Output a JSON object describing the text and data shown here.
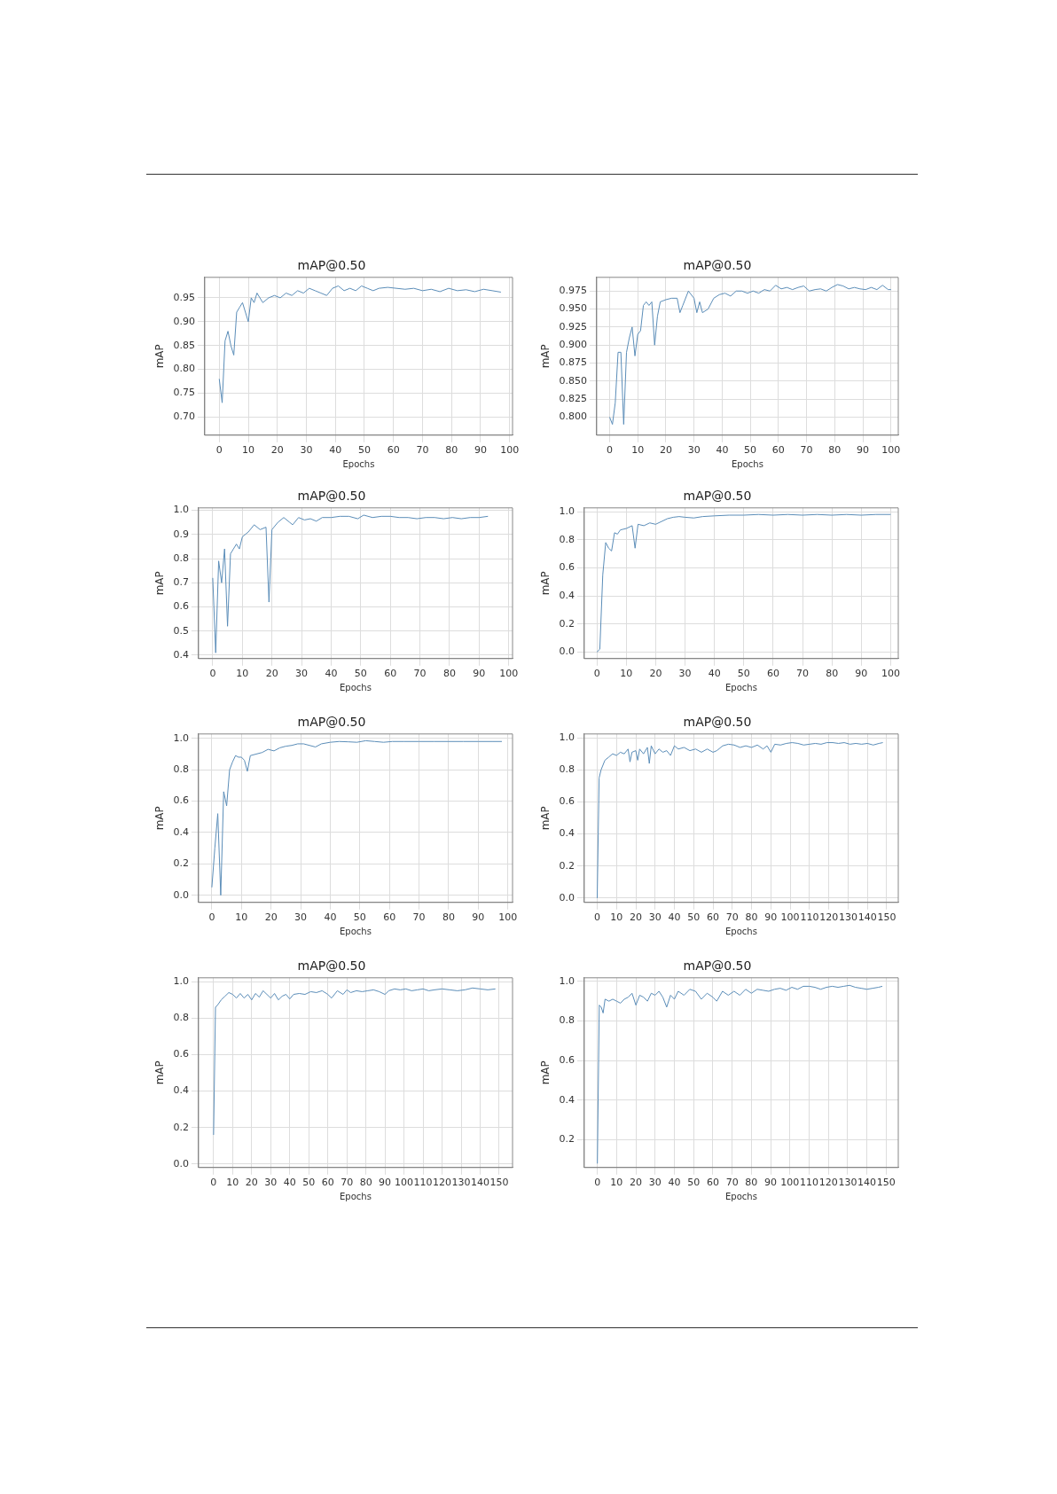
{
  "chart_data": [
    {
      "type": "line",
      "title": "mAP@0.50",
      "xlabel": "Epochs",
      "ylabel": "mAP",
      "grid": true,
      "xlim": [
        -5,
        101
      ],
      "ylim": [
        0.662,
        0.993
      ],
      "xticks": [
        0,
        10,
        20,
        30,
        40,
        50,
        60,
        70,
        80,
        90,
        100
      ],
      "yticks": [
        {
          "value": 0.7,
          "label": "0.70"
        },
        {
          "value": 0.75,
          "label": "0.75"
        },
        {
          "value": 0.8,
          "label": "0.80"
        },
        {
          "value": 0.85,
          "label": "0.85"
        },
        {
          "value": 0.9,
          "label": "0.90"
        },
        {
          "value": 0.95,
          "label": "0.95"
        }
      ],
      "x": [
        0,
        1,
        2,
        3,
        4,
        5,
        6,
        7,
        8,
        9,
        10,
        11,
        12,
        13,
        14,
        15,
        17,
        19,
        21,
        23,
        25,
        27,
        29,
        31,
        33,
        35,
        37,
        39,
        41,
        43,
        45,
        47,
        49,
        51,
        53,
        55,
        58,
        61,
        64,
        67,
        70,
        73,
        76,
        79,
        82,
        85,
        88,
        91,
        94,
        97
      ],
      "series": [
        {
          "color": "#5b8db8",
          "values": [
            0.78,
            0.73,
            0.86,
            0.88,
            0.85,
            0.83,
            0.92,
            0.93,
            0.94,
            0.92,
            0.9,
            0.95,
            0.94,
            0.96,
            0.95,
            0.94,
            0.95,
            0.955,
            0.95,
            0.96,
            0.955,
            0.965,
            0.96,
            0.97,
            0.965,
            0.96,
            0.955,
            0.97,
            0.975,
            0.965,
            0.97,
            0.965,
            0.975,
            0.97,
            0.965,
            0.97,
            0.972,
            0.97,
            0.968,
            0.97,
            0.965,
            0.968,
            0.963,
            0.97,
            0.965,
            0.967,
            0.963,
            0.968,
            0.965,
            0.962
          ]
        }
      ]
    },
    {
      "type": "line",
      "title": "mAP@0.50",
      "xlabel": "Epochs",
      "ylabel": "mAP",
      "grid": true,
      "xlim": [
        -4.6,
        102.6
      ],
      "ylim": [
        0.775,
        0.994
      ],
      "xticks": [
        0,
        10,
        20,
        30,
        40,
        50,
        60,
        70,
        80,
        90,
        100
      ],
      "yticks": [
        {
          "value": 0.8,
          "label": "0.800"
        },
        {
          "value": 0.825,
          "label": "0.825"
        },
        {
          "value": 0.85,
          "label": "0.850"
        },
        {
          "value": 0.875,
          "label": "0.875"
        },
        {
          "value": 0.9,
          "label": "0.900"
        },
        {
          "value": 0.925,
          "label": "0.925"
        },
        {
          "value": 0.95,
          "label": "0.950"
        },
        {
          "value": 0.975,
          "label": "0.975"
        }
      ],
      "x": [
        0,
        1,
        2,
        3,
        4,
        5,
        6,
        7,
        8,
        9,
        10,
        11,
        12,
        13,
        14,
        15,
        16,
        17,
        18,
        20,
        22,
        24,
        25,
        26,
        28,
        30,
        31,
        32,
        33,
        35,
        37,
        39,
        41,
        43,
        45,
        47,
        49,
        51,
        53,
        55,
        57,
        59,
        61,
        63,
        65,
        67,
        69,
        71,
        73,
        75,
        77,
        79,
        81,
        83,
        85,
        87,
        89,
        91,
        93,
        95,
        97,
        99,
        100
      ],
      "series": [
        {
          "color": "#5b8db8",
          "values": [
            0.8,
            0.79,
            0.82,
            0.89,
            0.89,
            0.79,
            0.89,
            0.91,
            0.925,
            0.885,
            0.915,
            0.92,
            0.955,
            0.96,
            0.955,
            0.96,
            0.9,
            0.94,
            0.96,
            0.963,
            0.965,
            0.965,
            0.945,
            0.955,
            0.975,
            0.965,
            0.945,
            0.96,
            0.945,
            0.95,
            0.965,
            0.97,
            0.972,
            0.968,
            0.975,
            0.975,
            0.972,
            0.975,
            0.972,
            0.977,
            0.975,
            0.983,
            0.978,
            0.98,
            0.977,
            0.98,
            0.982,
            0.975,
            0.977,
            0.978,
            0.975,
            0.98,
            0.984,
            0.982,
            0.978,
            0.98,
            0.978,
            0.977,
            0.98,
            0.977,
            0.983,
            0.977,
            0.977
          ]
        }
      ]
    },
    {
      "type": "line",
      "title": "mAP@0.50",
      "xlabel": "Epochs",
      "ylabel": "mAP",
      "grid": true,
      "xlim": [
        -4.8,
        101.3
      ],
      "ylim": [
        0.386,
        1.01
      ],
      "xticks": [
        0,
        10,
        20,
        30,
        40,
        50,
        60,
        70,
        80,
        90,
        100
      ],
      "yticks": [
        {
          "value": 0.4,
          "label": "0.4"
        },
        {
          "value": 0.5,
          "label": "0.5"
        },
        {
          "value": 0.6,
          "label": "0.6"
        },
        {
          "value": 0.7,
          "label": "0.7"
        },
        {
          "value": 0.8,
          "label": "0.8"
        },
        {
          "value": 0.9,
          "label": "0.9"
        },
        {
          "value": 1,
          "label": "1.0"
        }
      ],
      "x": [
        0,
        1,
        2,
        3,
        4,
        5,
        6,
        7,
        8,
        9,
        10,
        12,
        14,
        16,
        18,
        19,
        20,
        22,
        24,
        26,
        27,
        29,
        31,
        33,
        35,
        37,
        40,
        43,
        46,
        49,
        51,
        54,
        57,
        60,
        63,
        66,
        69,
        72,
        75,
        78,
        81,
        84,
        87,
        90,
        93
      ],
      "series": [
        {
          "color": "#5b8db8",
          "values": [
            0.72,
            0.41,
            0.79,
            0.7,
            0.84,
            0.52,
            0.82,
            0.84,
            0.86,
            0.84,
            0.89,
            0.91,
            0.94,
            0.92,
            0.93,
            0.62,
            0.92,
            0.95,
            0.97,
            0.95,
            0.94,
            0.97,
            0.96,
            0.965,
            0.955,
            0.97,
            0.97,
            0.975,
            0.975,
            0.965,
            0.98,
            0.97,
            0.975,
            0.975,
            0.97,
            0.97,
            0.965,
            0.97,
            0.97,
            0.965,
            0.97,
            0.965,
            0.97,
            0.97,
            0.975
          ]
        }
      ]
    },
    {
      "type": "line",
      "title": "mAP@0.50",
      "xlabel": "Epochs",
      "ylabel": "mAP",
      "grid": true,
      "xlim": [
        -4.3,
        102.6
      ],
      "ylim": [
        -0.047,
        1.027
      ],
      "xticks": [
        0,
        10,
        20,
        30,
        40,
        50,
        60,
        70,
        80,
        90,
        100
      ],
      "yticks": [
        {
          "value": 0,
          "label": "0.0"
        },
        {
          "value": 0.2,
          "label": "0.2"
        },
        {
          "value": 0.4,
          "label": "0.4"
        },
        {
          "value": 0.6,
          "label": "0.6"
        },
        {
          "value": 0.8,
          "label": "0.8"
        },
        {
          "value": 1,
          "label": "1.0"
        }
      ],
      "x": [
        0,
        1,
        2,
        3,
        4,
        5,
        6,
        7,
        8,
        10,
        12,
        13,
        14,
        16,
        18,
        20,
        22,
        24,
        26,
        28,
        30,
        33,
        36,
        40,
        45,
        50,
        55,
        60,
        65,
        70,
        75,
        80,
        85,
        90,
        95,
        100
      ],
      "series": [
        {
          "color": "#5b8db8",
          "values": [
            0,
            0.02,
            0.55,
            0.78,
            0.74,
            0.72,
            0.85,
            0.84,
            0.87,
            0.88,
            0.9,
            0.74,
            0.91,
            0.9,
            0.92,
            0.91,
            0.93,
            0.95,
            0.96,
            0.965,
            0.96,
            0.955,
            0.965,
            0.97,
            0.975,
            0.975,
            0.98,
            0.975,
            0.98,
            0.975,
            0.98,
            0.975,
            0.98,
            0.975,
            0.98,
            0.98
          ]
        }
      ]
    },
    {
      "type": "line",
      "title": "mAP@0.50",
      "xlabel": "Epochs",
      "ylabel": "mAP",
      "grid": true,
      "xlim": [
        -4.5,
        101.6
      ],
      "ylim": [
        -0.046,
        1.028
      ],
      "xticks": [
        0,
        10,
        20,
        30,
        40,
        50,
        60,
        70,
        80,
        90,
        100
      ],
      "yticks": [
        {
          "value": 0,
          "label": "0.0"
        },
        {
          "value": 0.2,
          "label": "0.2"
        },
        {
          "value": 0.4,
          "label": "0.4"
        },
        {
          "value": 0.6,
          "label": "0.6"
        },
        {
          "value": 0.8,
          "label": "0.8"
        },
        {
          "value": 1,
          "label": "1.0"
        }
      ],
      "x": [
        0,
        1,
        2,
        3,
        4,
        5,
        6,
        7,
        8,
        9,
        10,
        11,
        12,
        13,
        15,
        17,
        19,
        21,
        23,
        25,
        27,
        29,
        31,
        33,
        35,
        37,
        40,
        43,
        46,
        49,
        52,
        55,
        58,
        61,
        65,
        70,
        75,
        80,
        85,
        90,
        95,
        98
      ],
      "series": [
        {
          "color": "#5b8db8",
          "values": [
            0.05,
            0.3,
            0.52,
            0,
            0.66,
            0.57,
            0.8,
            0.85,
            0.89,
            0.88,
            0.88,
            0.86,
            0.79,
            0.89,
            0.9,
            0.91,
            0.93,
            0.92,
            0.94,
            0.95,
            0.955,
            0.965,
            0.965,
            0.955,
            0.945,
            0.965,
            0.975,
            0.98,
            0.978,
            0.975,
            0.985,
            0.98,
            0.975,
            0.98,
            0.98,
            0.98,
            0.98,
            0.98,
            0.98,
            0.98,
            0.98,
            0.98
          ]
        }
      ]
    },
    {
      "type": "line",
      "title": "mAP@0.50",
      "xlabel": "Epochs",
      "ylabel": "mAP",
      "grid": true,
      "xlim": [
        -6.7,
        156
      ],
      "ylim": [
        -0.027,
        1.024
      ],
      "xticks": [
        0,
        10,
        20,
        30,
        40,
        50,
        60,
        70,
        80,
        90,
        100,
        110,
        120,
        130,
        140,
        150
      ],
      "yticks": [
        {
          "value": 0,
          "label": "0.0"
        },
        {
          "value": 0.2,
          "label": "0.2"
        },
        {
          "value": 0.4,
          "label": "0.4"
        },
        {
          "value": 0.6,
          "label": "0.6"
        },
        {
          "value": 0.8,
          "label": "0.8"
        },
        {
          "value": 1,
          "label": "1.0"
        }
      ],
      "x": [
        0,
        1,
        2,
        4,
        6,
        8,
        10,
        12,
        14,
        16,
        17,
        18,
        20,
        21,
        22,
        24,
        26,
        27,
        28,
        30,
        32,
        34,
        36,
        38,
        40,
        42,
        45,
        48,
        51,
        54,
        57,
        60,
        62,
        65,
        68,
        71,
        74,
        77,
        80,
        83,
        86,
        88,
        90,
        92,
        95,
        98,
        101,
        104,
        107,
        110,
        113,
        116,
        119,
        122,
        125,
        128,
        131,
        134,
        137,
        140,
        143,
        146,
        148
      ],
      "series": [
        {
          "color": "#5b8db8",
          "values": [
            0,
            0.75,
            0.8,
            0.86,
            0.88,
            0.9,
            0.89,
            0.91,
            0.9,
            0.93,
            0.85,
            0.91,
            0.92,
            0.86,
            0.93,
            0.9,
            0.94,
            0.84,
            0.95,
            0.9,
            0.93,
            0.91,
            0.92,
            0.89,
            0.95,
            0.93,
            0.94,
            0.92,
            0.93,
            0.91,
            0.93,
            0.91,
            0.92,
            0.95,
            0.96,
            0.955,
            0.94,
            0.95,
            0.94,
            0.955,
            0.93,
            0.95,
            0.91,
            0.96,
            0.955,
            0.965,
            0.97,
            0.965,
            0.955,
            0.96,
            0.965,
            0.96,
            0.97,
            0.97,
            0.965,
            0.97,
            0.96,
            0.965,
            0.96,
            0.965,
            0.955,
            0.965,
            0.97
          ]
        }
      ]
    },
    {
      "type": "line",
      "title": "mAP@0.50",
      "xlabel": "Epochs",
      "ylabel": "mAP",
      "grid": true,
      "xlim": [
        -7.9,
        157
      ],
      "ylim": [
        -0.019,
        1.021
      ],
      "xticks": [
        0,
        10,
        20,
        30,
        40,
        50,
        60,
        70,
        80,
        90,
        100,
        110,
        120,
        130,
        140,
        150
      ],
      "yticks": [
        {
          "value": 0,
          "label": "0.0"
        },
        {
          "value": 0.2,
          "label": "0.2"
        },
        {
          "value": 0.4,
          "label": "0.4"
        },
        {
          "value": 0.6,
          "label": "0.6"
        },
        {
          "value": 0.8,
          "label": "0.8"
        },
        {
          "value": 1,
          "label": "1.0"
        }
      ],
      "x": [
        0,
        1,
        2,
        4,
        6,
        8,
        10,
        12,
        14,
        16,
        18,
        20,
        22,
        24,
        26,
        28,
        30,
        32,
        34,
        36,
        38,
        40,
        42,
        45,
        48,
        51,
        54,
        57,
        60,
        62,
        65,
        68,
        70,
        72,
        75,
        78,
        81,
        84,
        87,
        90,
        92,
        95,
        98,
        101,
        104,
        107,
        110,
        113,
        116,
        120,
        124,
        128,
        132,
        136,
        140,
        144,
        148
      ],
      "series": [
        {
          "color": "#5b8db8",
          "values": [
            0.16,
            0.86,
            0.87,
            0.9,
            0.92,
            0.94,
            0.93,
            0.91,
            0.935,
            0.91,
            0.93,
            0.9,
            0.935,
            0.915,
            0.95,
            0.93,
            0.91,
            0.935,
            0.9,
            0.92,
            0.93,
            0.905,
            0.93,
            0.935,
            0.93,
            0.945,
            0.94,
            0.95,
            0.93,
            0.91,
            0.95,
            0.93,
            0.955,
            0.94,
            0.95,
            0.945,
            0.95,
            0.955,
            0.945,
            0.93,
            0.95,
            0.96,
            0.955,
            0.96,
            0.95,
            0.955,
            0.96,
            0.95,
            0.955,
            0.96,
            0.955,
            0.95,
            0.955,
            0.965,
            0.96,
            0.955,
            0.96
          ]
        }
      ]
    },
    {
      "type": "line",
      "title": "mAP@0.50",
      "xlabel": "Epochs",
      "ylabel": "mAP",
      "grid": true,
      "xlim": [
        -6.8,
        156.3
      ],
      "ylim": [
        0.06,
        1.018
      ],
      "xticks": [
        0,
        10,
        20,
        30,
        40,
        50,
        60,
        70,
        80,
        90,
        100,
        110,
        120,
        130,
        140,
        150
      ],
      "yticks": [
        {
          "value": 0.2,
          "label": "0.2"
        },
        {
          "value": 0.4,
          "label": "0.4"
        },
        {
          "value": 0.6,
          "label": "0.6"
        },
        {
          "value": 0.8,
          "label": "0.8"
        },
        {
          "value": 1,
          "label": "1.0"
        }
      ],
      "x": [
        0,
        1,
        2,
        3,
        4,
        6,
        8,
        10,
        12,
        14,
        16,
        18,
        20,
        22,
        24,
        26,
        28,
        30,
        32,
        34,
        36,
        38,
        40,
        42,
        45,
        48,
        51,
        54,
        57,
        60,
        62,
        65,
        68,
        71,
        74,
        77,
        80,
        83,
        86,
        89,
        92,
        95,
        98,
        101,
        104,
        107,
        110,
        113,
        116,
        119,
        122,
        125,
        128,
        131,
        134,
        137,
        140,
        143,
        146,
        148
      ],
      "series": [
        {
          "color": "#5b8db8",
          "values": [
            0.08,
            0.88,
            0.87,
            0.84,
            0.91,
            0.9,
            0.91,
            0.9,
            0.89,
            0.91,
            0.92,
            0.94,
            0.88,
            0.93,
            0.92,
            0.9,
            0.94,
            0.93,
            0.95,
            0.92,
            0.87,
            0.93,
            0.91,
            0.95,
            0.93,
            0.96,
            0.95,
            0.91,
            0.94,
            0.92,
            0.9,
            0.95,
            0.93,
            0.95,
            0.93,
            0.96,
            0.94,
            0.96,
            0.955,
            0.95,
            0.96,
            0.965,
            0.955,
            0.97,
            0.96,
            0.975,
            0.975,
            0.97,
            0.96,
            0.97,
            0.975,
            0.97,
            0.975,
            0.98,
            0.97,
            0.965,
            0.96,
            0.965,
            0.97,
            0.975
          ]
        }
      ]
    }
  ]
}
